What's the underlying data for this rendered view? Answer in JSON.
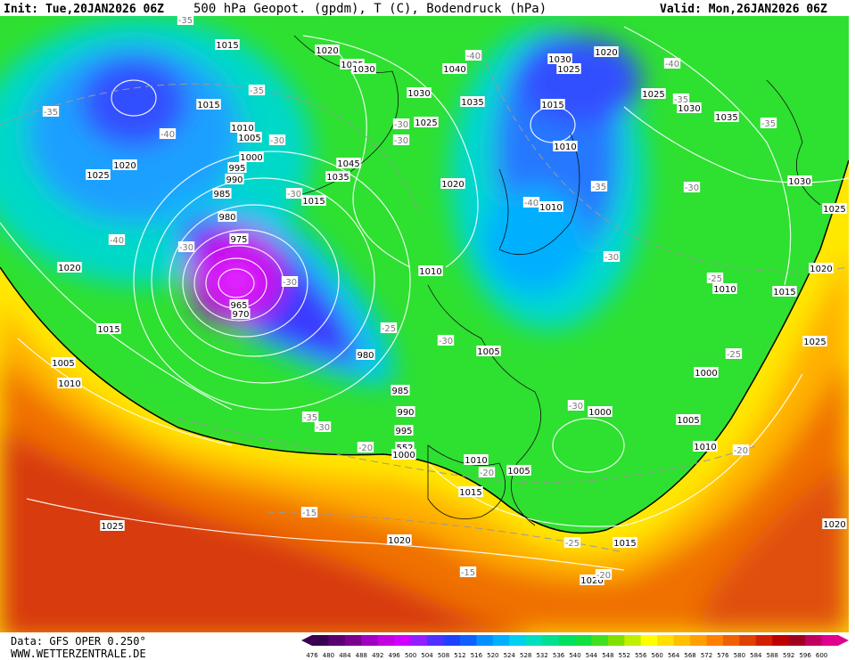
{
  "header": {
    "init": "Init: Tue,20JAN2026 06Z",
    "title": "500 hPa Geopot. (gpdm), T (C), Bodendruck (hPa)",
    "valid": "Valid: Mon,26JAN2026 06Z"
  },
  "footer": {
    "data": "Data: GFS OPER 0.250°",
    "site": "WWW.WETTERZENTRALE.DE"
  },
  "colorbar": {
    "labels": [
      476,
      480,
      484,
      488,
      492,
      496,
      500,
      504,
      508,
      512,
      516,
      520,
      524,
      528,
      532,
      536,
      540,
      544,
      548,
      552,
      556,
      560,
      564,
      568,
      572,
      576,
      580,
      584,
      588,
      592,
      596,
      600
    ],
    "colors": [
      "#3a0050",
      "#5a0070",
      "#7a0090",
      "#a000c0",
      "#c000e0",
      "#d000ff",
      "#9020ff",
      "#5030ff",
      "#2040ff",
      "#1060ff",
      "#0090ff",
      "#00b0ff",
      "#00d0f0",
      "#00e0c0",
      "#00e090",
      "#00e060",
      "#10e040",
      "#40e020",
      "#80e000",
      "#c0f000",
      "#ffff00",
      "#ffe000",
      "#ffc000",
      "#ffa000",
      "#ff8000",
      "#f06000",
      "#e04000",
      "#d02000",
      "#c00000",
      "#a00020",
      "#c00060",
      "#e00090"
    ]
  },
  "pressure_labels": [
    "1015",
    "1020",
    "1025",
    "1030",
    "1040",
    "1030",
    "1020",
    "1025",
    "1030",
    "1035",
    "1025",
    "1030",
    "1035",
    "1015",
    "1015",
    "1010",
    "1005",
    "1025",
    "1010",
    "1000",
    "1020",
    "995",
    "1045",
    "1025",
    "990",
    "1035",
    "1020",
    "1030",
    "985",
    "1015",
    "1010",
    "1025",
    "980",
    "975",
    "1020",
    "1010",
    "1020",
    "1010",
    "1015",
    "965",
    "970",
    "1015",
    "1025",
    "1005",
    "980",
    "1005",
    "1010",
    "1000",
    "985",
    "990",
    "1000",
    "1005",
    "995",
    "1010",
    "552",
    "1000",
    "1010",
    "1005",
    "1015",
    "1025",
    "1020",
    "1015",
    "1020",
    "1020"
  ],
  "temperature_labels": [
    "-35",
    "-35",
    "-35",
    "-40",
    "-30",
    "-40",
    "-40",
    "-35",
    "-35",
    "-30",
    "-30",
    "-30",
    "-35",
    "-30",
    "-40",
    "-40",
    "-30",
    "-30",
    "-25",
    "-30",
    "-25",
    "-30",
    "-25",
    "-30",
    "-35",
    "-30",
    "-20",
    "-20",
    "-20",
    "-15",
    "-25",
    "-20",
    "-15"
  ]
}
